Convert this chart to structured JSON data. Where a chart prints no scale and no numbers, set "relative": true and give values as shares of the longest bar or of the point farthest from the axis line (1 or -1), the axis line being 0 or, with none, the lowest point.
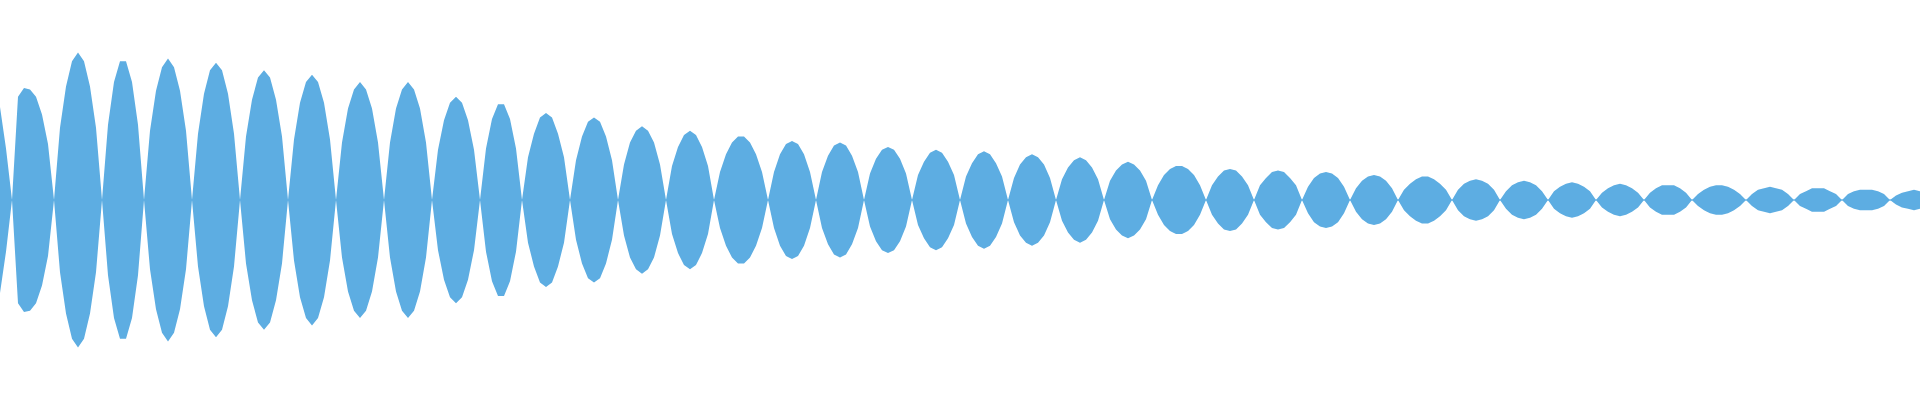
{
  "chart_data": {
    "type": "area",
    "relative": true,
    "categories": [
      null,
      null,
      null,
      null,
      null,
      null,
      null,
      null,
      null,
      null,
      null,
      null,
      null,
      null,
      null,
      null,
      null,
      null,
      null,
      null,
      null,
      null,
      null,
      null,
      null,
      null,
      null,
      null,
      null,
      null,
      null,
      null,
      null,
      null,
      null,
      null,
      null,
      null,
      null,
      null,
      null,
      null,
      null,
      null,
      null,
      null,
      null,
      null,
      null,
      null,
      null,
      null,
      null,
      null,
      null,
      null,
      null,
      null,
      null,
      null,
      null,
      null,
      null,
      null,
      null,
      null,
      null,
      null,
      null,
      null,
      null,
      null,
      null,
      null,
      null,
      null,
      null,
      null,
      null,
      null,
      null,
      null,
      null,
      null,
      null,
      null,
      null,
      null,
      null,
      null,
      null,
      null,
      null,
      null,
      null,
      null,
      null,
      null,
      null,
      null,
      null,
      null,
      null,
      null,
      null,
      null,
      null,
      null,
      null,
      null,
      null,
      null,
      null,
      null,
      null,
      null,
      null,
      null,
      null,
      null,
      null,
      null,
      null,
      null,
      null,
      null,
      null,
      null,
      null,
      null,
      null,
      null,
      null,
      null,
      null,
      null,
      null,
      null,
      null,
      null,
      null,
      null,
      null,
      null,
      null,
      null,
      null,
      null,
      null,
      null,
      null,
      null,
      null,
      null,
      null,
      null,
      null,
      null,
      null,
      null,
      null,
      null,
      null,
      null,
      null,
      null,
      null,
      null,
      null,
      null,
      null,
      null,
      null,
      null,
      null,
      null,
      null,
      null,
      null,
      null,
      null,
      null,
      null,
      null,
      null,
      null,
      null,
      null,
      null,
      null,
      null,
      null,
      null,
      null,
      null,
      null,
      null,
      null,
      null,
      null,
      null,
      null,
      null,
      null,
      null,
      null,
      null,
      null,
      null,
      null,
      null,
      null,
      null,
      null,
      null,
      null,
      null,
      null,
      null,
      null,
      null,
      null,
      null,
      null,
      null,
      null,
      null,
      null,
      null,
      null,
      null,
      null,
      null,
      null,
      null,
      null,
      null,
      null,
      null,
      null,
      null,
      null,
      null,
      null,
      null,
      null,
      null,
      null,
      null,
      null,
      null,
      null,
      null,
      null,
      null,
      null,
      null,
      null,
      null,
      null,
      null,
      null,
      null,
      null,
      null,
      null,
      null,
      null,
      null,
      null,
      null,
      null,
      null,
      null,
      null,
      null,
      null,
      null,
      null,
      null,
      null,
      null,
      null,
      null,
      null,
      null,
      null,
      null,
      null,
      null,
      null,
      null,
      null,
      null,
      null,
      null,
      null,
      null,
      null,
      null,
      null,
      null,
      null,
      null,
      null,
      null,
      null,
      null,
      null,
      null,
      null,
      null,
      null,
      null,
      null,
      null,
      null,
      null,
      null,
      null,
      null
    ],
    "series": [
      {
        "color": "#5dade2",
        "values": [
          0.63,
          0.35,
          0,
          0.7,
          0.76,
          0.75,
          0.7,
          0.58,
          0.38,
          0,
          0.49,
          0.77,
          0.94,
          1.0,
          0.94,
          0.77,
          0.49,
          0,
          0.51,
          0.8,
          0.94,
          0.94,
          0.8,
          0.51,
          0,
          0.47,
          0.74,
          0.9,
          0.96,
          0.9,
          0.74,
          0.47,
          0,
          0.45,
          0.72,
          0.88,
          0.93,
          0.88,
          0.72,
          0.45,
          0,
          0.43,
          0.68,
          0.83,
          0.88,
          0.83,
          0.68,
          0.43,
          0,
          0.41,
          0.66,
          0.8,
          0.85,
          0.8,
          0.66,
          0.41,
          0,
          0.39,
          0.62,
          0.75,
          0.8,
          0.75,
          0.62,
          0.39,
          0,
          0.39,
          0.62,
          0.75,
          0.8,
          0.75,
          0.62,
          0.39,
          0,
          0.34,
          0.54,
          0.66,
          0.7,
          0.66,
          0.54,
          0.34,
          0,
          0.35,
          0.55,
          0.65,
          0.65,
          0.55,
          0.35,
          0,
          0.29,
          0.45,
          0.56,
          0.59,
          0.56,
          0.45,
          0.29,
          0,
          0.27,
          0.43,
          0.53,
          0.56,
          0.53,
          0.43,
          0.27,
          0,
          0.24,
          0.39,
          0.47,
          0.5,
          0.47,
          0.39,
          0.24,
          0,
          0.23,
          0.36,
          0.44,
          0.47,
          0.44,
          0.36,
          0.23,
          0,
          0.19,
          0.31,
          0.39,
          0.43,
          0.43,
          0.39,
          0.31,
          0.19,
          0,
          0.19,
          0.31,
          0.38,
          0.4,
          0.38,
          0.31,
          0.19,
          0,
          0.19,
          0.3,
          0.37,
          0.39,
          0.37,
          0.3,
          0.19,
          0,
          0.18,
          0.28,
          0.34,
          0.36,
          0.34,
          0.28,
          0.18,
          0,
          0.17,
          0.26,
          0.32,
          0.34,
          0.32,
          0.26,
          0.17,
          0,
          0.16,
          0.25,
          0.31,
          0.33,
          0.31,
          0.25,
          0.16,
          0,
          0.15,
          0.24,
          0.29,
          0.31,
          0.29,
          0.24,
          0.15,
          0,
          0.14,
          0.22,
          0.27,
          0.29,
          0.27,
          0.22,
          0.14,
          0,
          0.13,
          0.2,
          0.24,
          0.26,
          0.24,
          0.2,
          0.13,
          0,
          0.1,
          0.17,
          0.21,
          0.23,
          0.23,
          0.21,
          0.17,
          0.1,
          0,
          0.1,
          0.16,
          0.2,
          0.21,
          0.2,
          0.16,
          0.1,
          0,
          0.1,
          0.15,
          0.19,
          0.2,
          0.19,
          0.15,
          0.1,
          0,
          0.09,
          0.15,
          0.18,
          0.19,
          0.18,
          0.15,
          0.09,
          0,
          0.08,
          0.13,
          0.16,
          0.17,
          0.16,
          0.13,
          0.08,
          0,
          0.07,
          0.11,
          0.14,
          0.16,
          0.16,
          0.14,
          0.11,
          0.07,
          0,
          0.07,
          0.11,
          0.13,
          0.14,
          0.13,
          0.11,
          0.07,
          0,
          0.06,
          0.1,
          0.12,
          0.13,
          0.12,
          0.1,
          0.06,
          0,
          0.06,
          0.09,
          0.11,
          0.12,
          0.11,
          0.09,
          0.06,
          0,
          0.05,
          0.08,
          0.1,
          0.11,
          0.1,
          0.08,
          0.05,
          0,
          0.05,
          0.08,
          0.1,
          0.1,
          0.1,
          0.08,
          0.05,
          0,
          0.04,
          0.07,
          0.09,
          0.1,
          0.1,
          0.09,
          0.07,
          0.04,
          0,
          0.04,
          0.07,
          0.08,
          0.09,
          0.08,
          0.07,
          0.04,
          0,
          0.04,
          0.06,
          0.08,
          0.08,
          0.08,
          0.06,
          0.04,
          0,
          0.04,
          0.06,
          0.07,
          0.07,
          0.07,
          0.06,
          0.04,
          0,
          0.03,
          0.05,
          0.06,
          0.07,
          0.06
        ]
      },
      {
        "color": "#5dade2",
        "values": [
          -0.63,
          -0.35,
          0,
          -0.7,
          -0.76,
          -0.75,
          -0.7,
          -0.58,
          -0.38,
          0,
          -0.49,
          -0.77,
          -0.94,
          -1.0,
          -0.94,
          -0.77,
          -0.49,
          0,
          -0.51,
          -0.8,
          -0.94,
          -0.94,
          -0.8,
          -0.51,
          0,
          -0.47,
          -0.74,
          -0.9,
          -0.96,
          -0.9,
          -0.74,
          -0.47,
          0,
          -0.45,
          -0.72,
          -0.88,
          -0.93,
          -0.88,
          -0.72,
          -0.45,
          0,
          -0.43,
          -0.68,
          -0.83,
          -0.88,
          -0.83,
          -0.68,
          -0.43,
          0,
          -0.41,
          -0.66,
          -0.8,
          -0.85,
          -0.8,
          -0.66,
          -0.41,
          0,
          -0.39,
          -0.62,
          -0.75,
          -0.8,
          -0.75,
          -0.62,
          -0.39,
          0,
          -0.39,
          -0.62,
          -0.75,
          -0.8,
          -0.75,
          -0.62,
          -0.39,
          0,
          -0.34,
          -0.54,
          -0.66,
          -0.7,
          -0.66,
          -0.54,
          -0.34,
          0,
          -0.35,
          -0.55,
          -0.65,
          -0.65,
          -0.55,
          -0.35,
          0,
          -0.29,
          -0.45,
          -0.56,
          -0.59,
          -0.56,
          -0.45,
          -0.29,
          0,
          -0.27,
          -0.43,
          -0.53,
          -0.56,
          -0.53,
          -0.43,
          -0.27,
          0,
          -0.24,
          -0.39,
          -0.47,
          -0.5,
          -0.47,
          -0.39,
          -0.24,
          0,
          -0.23,
          -0.36,
          -0.44,
          -0.47,
          -0.44,
          -0.36,
          -0.23,
          0,
          -0.19,
          -0.31,
          -0.39,
          -0.43,
          -0.43,
          -0.39,
          -0.31,
          -0.19,
          0,
          -0.19,
          -0.31,
          -0.38,
          -0.4,
          -0.38,
          -0.31,
          -0.19,
          0,
          -0.19,
          -0.3,
          -0.37,
          -0.39,
          -0.37,
          -0.3,
          -0.19,
          0,
          -0.18,
          -0.28,
          -0.34,
          -0.36,
          -0.34,
          -0.28,
          -0.18,
          0,
          -0.17,
          -0.26,
          -0.32,
          -0.34,
          -0.32,
          -0.26,
          -0.17,
          0,
          -0.16,
          -0.25,
          -0.31,
          -0.33,
          -0.31,
          -0.25,
          -0.16,
          0,
          -0.15,
          -0.24,
          -0.29,
          -0.31,
          -0.29,
          -0.24,
          -0.15,
          0,
          -0.14,
          -0.22,
          -0.27,
          -0.29,
          -0.27,
          -0.22,
          -0.14,
          0,
          -0.13,
          -0.2,
          -0.24,
          -0.26,
          -0.24,
          -0.2,
          -0.13,
          0,
          -0.1,
          -0.17,
          -0.21,
          -0.23,
          -0.23,
          -0.21,
          -0.17,
          -0.1,
          0,
          -0.1,
          -0.16,
          -0.2,
          -0.21,
          -0.2,
          -0.16,
          -0.1,
          0,
          -0.1,
          -0.15,
          -0.19,
          -0.2,
          -0.19,
          -0.15,
          -0.1,
          0,
          -0.09,
          -0.15,
          -0.18,
          -0.19,
          -0.18,
          -0.15,
          -0.09,
          0,
          -0.08,
          -0.13,
          -0.16,
          -0.17,
          -0.16,
          -0.13,
          -0.08,
          0,
          -0.07,
          -0.11,
          -0.14,
          -0.16,
          -0.16,
          -0.14,
          -0.11,
          -0.07,
          0,
          -0.07,
          -0.11,
          -0.13,
          -0.14,
          -0.13,
          -0.11,
          -0.07,
          0,
          -0.06,
          -0.1,
          -0.12,
          -0.13,
          -0.12,
          -0.1,
          -0.06,
          0,
          -0.06,
          -0.09,
          -0.11,
          -0.12,
          -0.11,
          -0.09,
          -0.06,
          0,
          -0.05,
          -0.08,
          -0.1,
          -0.11,
          -0.1,
          -0.08,
          -0.05,
          0,
          -0.05,
          -0.08,
          -0.1,
          -0.1,
          -0.1,
          -0.08,
          -0.05,
          0,
          -0.04,
          -0.07,
          -0.09,
          -0.1,
          -0.1,
          -0.09,
          -0.07,
          -0.04,
          0,
          -0.04,
          -0.07,
          -0.08,
          -0.09,
          -0.08,
          -0.07,
          -0.04,
          0,
          -0.04,
          -0.06,
          -0.08,
          -0.08,
          -0.08,
          -0.06,
          -0.04,
          0,
          -0.04,
          -0.06,
          -0.07,
          -0.07,
          -0.07,
          -0.06,
          -0.04,
          0,
          -0.03,
          -0.05,
          -0.06,
          -0.07,
          -0.06
        ]
      }
    ],
    "ref_lines": [
      {
        "axis": "y",
        "value": 0,
        "color": "#5dade2"
      }
    ]
  }
}
